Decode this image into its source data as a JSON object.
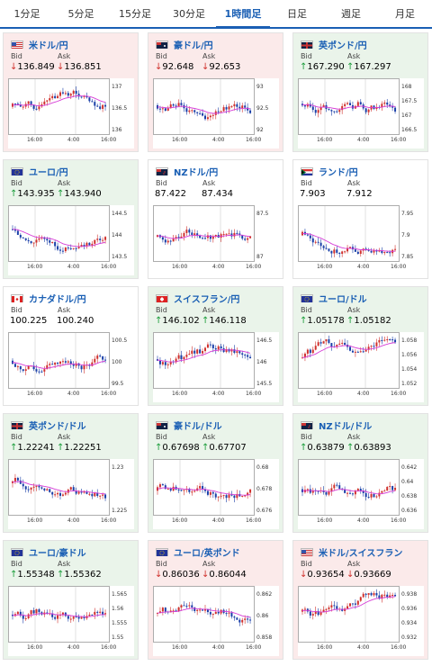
{
  "tabs": [
    {
      "label": "1分足",
      "active": false
    },
    {
      "label": "5分足",
      "active": false
    },
    {
      "label": "15分足",
      "active": false
    },
    {
      "label": "30分足",
      "active": false
    },
    {
      "label": "1時間足",
      "active": true
    },
    {
      "label": "日足",
      "active": false
    },
    {
      "label": "週足",
      "active": false
    },
    {
      "label": "月足",
      "active": false
    }
  ],
  "labels": {
    "bid": "Bid",
    "ask": "Ask"
  },
  "colors": {
    "up_bg": "#eaf4ea",
    "down_bg": "#fbeaea",
    "up_arrow": "#1a9c3a",
    "down_arrow": "#d0312d",
    "link": "#1a5fb4",
    "ma": "#d63bd6"
  },
  "cards": [
    {
      "pair": "米ドル/円",
      "flag": "us",
      "dir": "down",
      "bid": "136.849",
      "ask": "136.851",
      "ticks": [
        "137",
        "136.5",
        "136"
      ],
      "xlabels": [
        "16:00",
        "4:00",
        "16:00"
      ]
    },
    {
      "pair": "豪ドル/円",
      "flag": "au",
      "dir": "down",
      "bid": "92.648",
      "ask": "92.653",
      "ticks": [
        "93",
        "92.5",
        "92"
      ],
      "xlabels": [
        "16:00",
        "4:00",
        "16:00"
      ]
    },
    {
      "pair": "英ポンド/円",
      "flag": "gb",
      "dir": "up",
      "bid": "167.290",
      "ask": "167.297",
      "ticks": [
        "168",
        "167.5",
        "167",
        "166.5"
      ],
      "xlabels": [
        "16:00",
        "4:00",
        "16:00"
      ]
    },
    {
      "pair": "ユーロ/円",
      "flag": "eu",
      "dir": "up",
      "bid": "143.935",
      "ask": "143.940",
      "ticks": [
        "144.5",
        "144",
        "143.5"
      ],
      "xlabels": [
        "16:00",
        "4:00",
        "16:00"
      ]
    },
    {
      "pair": "NZドル/円",
      "flag": "nz",
      "dir": "flat",
      "bid": "87.422",
      "ask": "87.434",
      "ticks": [
        "87.5",
        "87"
      ],
      "xlabels": [
        "16:00",
        "4:00",
        "16:00"
      ]
    },
    {
      "pair": "ランド/円",
      "flag": "za",
      "dir": "flat",
      "bid": "7.903",
      "ask": "7.912",
      "ticks": [
        "7.95",
        "7.9",
        "7.85"
      ],
      "xlabels": [
        "16:00",
        "4:00",
        "16:00"
      ]
    },
    {
      "pair": "カナダドル/円",
      "flag": "ca",
      "dir": "flat",
      "bid": "100.225",
      "ask": "100.240",
      "ticks": [
        "100.5",
        "100",
        "99.5"
      ],
      "xlabels": [
        "16:00",
        "4:00",
        "16:00"
      ]
    },
    {
      "pair": "スイスフラン/円",
      "flag": "ch",
      "dir": "up",
      "bid": "146.102",
      "ask": "146.118",
      "ticks": [
        "146.5",
        "146",
        "145.5"
      ],
      "xlabels": [
        "16:00",
        "4:00",
        "16:00"
      ]
    },
    {
      "pair": "ユーロ/ドル",
      "flag": "eu",
      "dir": "up",
      "bid": "1.05178",
      "ask": "1.05182",
      "ticks": [
        "1.058",
        "1.056",
        "1.054",
        "1.052"
      ],
      "xlabels": [
        "16:00",
        "4:00",
        "16:00"
      ]
    },
    {
      "pair": "英ポンド/ドル",
      "flag": "gb",
      "dir": "up",
      "bid": "1.22241",
      "ask": "1.22251",
      "ticks": [
        "1.23",
        "1.225"
      ],
      "xlabels": [
        "16:00",
        "4:00",
        "16:00"
      ]
    },
    {
      "pair": "豪ドル/ドル",
      "flag": "au",
      "dir": "up",
      "bid": "0.67698",
      "ask": "0.67707",
      "ticks": [
        "0.68",
        "0.678",
        "0.676"
      ],
      "xlabels": [
        "16:00",
        "4:00",
        "16:00"
      ]
    },
    {
      "pair": "NZドル/ドル",
      "flag": "nz",
      "dir": "up",
      "bid": "0.63879",
      "ask": "0.63893",
      "ticks": [
        "0.642",
        "0.64",
        "0.638",
        "0.636"
      ],
      "xlabels": [
        "16:00",
        "4:00",
        "16:00"
      ]
    },
    {
      "pair": "ユーロ/豪ドル",
      "flag": "eu",
      "dir": "up",
      "bid": "1.55348",
      "ask": "1.55362",
      "ticks": [
        "1.565",
        "1.56",
        "1.555",
        "1.55"
      ],
      "xlabels": [
        "16:00",
        "4:00",
        "16:00"
      ]
    },
    {
      "pair": "ユーロ/英ポンド",
      "flag": "eu",
      "dir": "down",
      "bid": "0.86036",
      "ask": "0.86044",
      "ticks": [
        "0.862",
        "0.86",
        "0.858"
      ],
      "xlabels": [
        "16:00",
        "4:00",
        "16:00"
      ]
    },
    {
      "pair": "米ドル/スイスフラン",
      "flag": "us",
      "dir": "down",
      "bid": "0.93654",
      "ask": "0.93669",
      "ticks": [
        "0.938",
        "0.936",
        "0.934",
        "0.932"
      ],
      "xlabels": [
        "16:00",
        "4:00",
        "16:00"
      ]
    }
  ]
}
